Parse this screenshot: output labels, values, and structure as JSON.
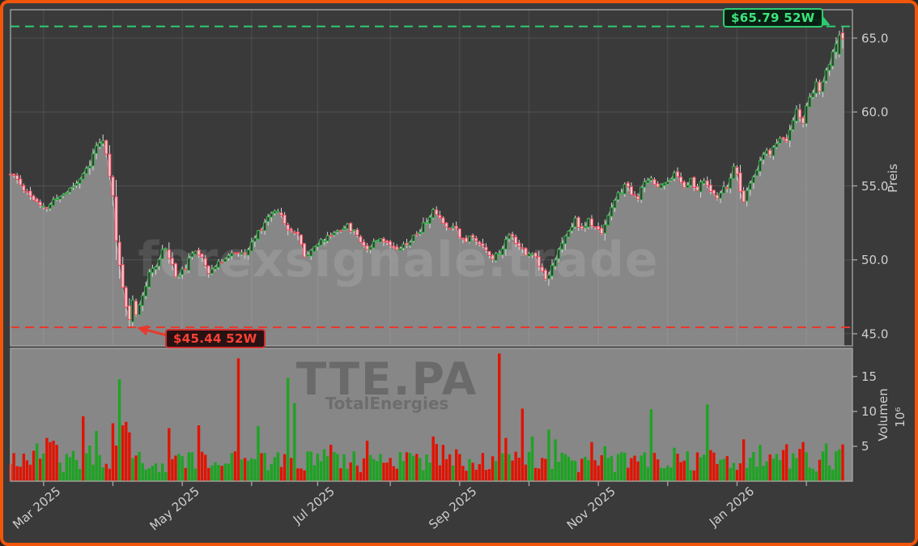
{
  "meta": {
    "watermark_main": "forexsignale.trade",
    "watermark_symbol": "TTE.PA",
    "watermark_company": "TotalEnergies"
  },
  "axes": {
    "price_axis_title": "Preis",
    "volume_axis_title": "Volumen",
    "volume_scale_label": "10⁶",
    "price_tick_labels": [
      "45.0",
      "50.0",
      "55.0",
      "60.0",
      "65.0"
    ],
    "price_tick_values": [
      45,
      50,
      55,
      60,
      65
    ],
    "volume_tick_labels": [
      "5",
      "10",
      "15"
    ],
    "volume_tick_values": [
      5,
      10,
      15
    ],
    "x_ticks": [
      {
        "day": 10,
        "label": "Mar 2025"
      },
      {
        "day": 31,
        "label": ""
      },
      {
        "day": 52,
        "label": "May 2025"
      },
      {
        "day": 73,
        "label": ""
      },
      {
        "day": 93,
        "label": "Jul 2025"
      },
      {
        "day": 115,
        "label": ""
      },
      {
        "day": 136,
        "label": "Sep 2025"
      },
      {
        "day": 157,
        "label": ""
      },
      {
        "day": 178,
        "label": "Nov 2025"
      },
      {
        "day": 199,
        "label": ""
      },
      {
        "day": 220,
        "label": "Jan 2026"
      },
      {
        "day": 241,
        "label": ""
      }
    ]
  },
  "levels": {
    "high": {
      "value": 65.79,
      "label": "$65.79 52W"
    },
    "low": {
      "value": 45.44,
      "label": "$45.44 52W"
    }
  },
  "chart_data": {
    "type": "candlestick",
    "symbol": "TTE.PA",
    "company": "TotalEnergies",
    "x_range": [
      "Feb 2025",
      "Feb 2026"
    ],
    "trading_days": 253,
    "ylabel_price": "Preis",
    "ylabel_volume": "Volumen (10^6)",
    "ylim_price": [
      44.2,
      66.9
    ],
    "ylim_volume": [
      0,
      19.2
    ],
    "high_52w": 65.79,
    "low_52w": 45.44,
    "last_close": 65.0,
    "grid": true,
    "price_keypoints": [
      [
        0,
        55.8
      ],
      [
        2,
        55.4
      ],
      [
        4,
        54.8
      ],
      [
        7,
        54.1
      ],
      [
        9,
        53.6
      ],
      [
        11,
        53.5
      ],
      [
        13,
        54.0
      ],
      [
        17,
        54.6
      ],
      [
        20,
        55.2
      ],
      [
        22,
        55.9
      ],
      [
        24,
        56.3
      ],
      [
        26,
        57.9
      ],
      [
        28,
        57.8
      ],
      [
        29,
        56.9
      ],
      [
        31,
        54.0
      ],
      [
        32,
        51.5
      ],
      [
        33,
        49.3
      ],
      [
        35,
        46.8
      ],
      [
        36,
        45.9
      ],
      [
        37,
        47.2
      ],
      [
        38,
        46.4
      ],
      [
        40,
        47.6
      ],
      [
        42,
        48.9
      ],
      [
        45,
        50.2
      ],
      [
        47,
        50.9
      ],
      [
        48,
        50.2
      ],
      [
        50,
        48.9
      ],
      [
        52,
        49.2
      ],
      [
        56,
        50.6
      ],
      [
        58,
        50.3
      ],
      [
        60,
        49.2
      ],
      [
        62,
        49.5
      ],
      [
        65,
        50.2
      ],
      [
        68,
        50.5
      ],
      [
        71,
        50.3
      ],
      [
        74,
        51.5
      ],
      [
        77,
        52.6
      ],
      [
        80,
        53.4
      ],
      [
        82,
        53.1
      ],
      [
        84,
        52.2
      ],
      [
        87,
        51.6
      ],
      [
        89,
        50.3
      ],
      [
        92,
        50.9
      ],
      [
        95,
        51.4
      ],
      [
        99,
        52.0
      ],
      [
        102,
        52.3
      ],
      [
        105,
        51.7
      ],
      [
        108,
        50.7
      ],
      [
        110,
        51.3
      ],
      [
        112,
        51.5
      ],
      [
        114,
        51.1
      ],
      [
        117,
        50.8
      ],
      [
        120,
        51.1
      ],
      [
        124,
        52.0
      ],
      [
        128,
        53.3
      ],
      [
        131,
        52.7
      ],
      [
        132,
        52.1
      ],
      [
        134,
        52.4
      ],
      [
        136,
        51.7
      ],
      [
        138,
        51.2
      ],
      [
        139,
        51.6
      ],
      [
        143,
        51.0
      ],
      [
        146,
        50.1
      ],
      [
        149,
        50.7
      ],
      [
        151,
        51.8
      ],
      [
        153,
        51.3
      ],
      [
        156,
        50.3
      ],
      [
        158,
        50.5
      ],
      [
        161,
        49.4
      ],
      [
        162,
        48.7
      ],
      [
        164,
        49.7
      ],
      [
        167,
        51.0
      ],
      [
        170,
        52.3
      ],
      [
        171,
        52.8
      ],
      [
        173,
        52.0
      ],
      [
        175,
        52.7
      ],
      [
        177,
        52.1
      ],
      [
        179,
        51.9
      ],
      [
        181,
        53.1
      ],
      [
        184,
        54.3
      ],
      [
        186,
        55.1
      ],
      [
        188,
        54.4
      ],
      [
        190,
        54.2
      ],
      [
        192,
        55.1
      ],
      [
        194,
        55.6
      ],
      [
        196,
        54.9
      ],
      [
        198,
        55.2
      ],
      [
        201,
        55.8
      ],
      [
        204,
        55.0
      ],
      [
        206,
        55.4
      ],
      [
        208,
        54.7
      ],
      [
        210,
        55.4
      ],
      [
        212,
        54.6
      ],
      [
        214,
        54.1
      ],
      [
        217,
        55.1
      ],
      [
        219,
        56.2
      ],
      [
        220,
        55.5
      ],
      [
        222,
        53.9
      ],
      [
        223,
        54.4
      ],
      [
        225,
        55.7
      ],
      [
        227,
        56.7
      ],
      [
        229,
        57.3
      ],
      [
        230,
        57.1
      ],
      [
        232,
        57.9
      ],
      [
        234,
        58.3
      ],
      [
        235,
        57.9
      ],
      [
        237,
        59.6
      ],
      [
        238,
        60.2
      ],
      [
        240,
        59.3
      ],
      [
        242,
        61.0
      ],
      [
        244,
        62.0
      ],
      [
        245,
        61.3
      ],
      [
        247,
        62.8
      ],
      [
        248,
        63.2
      ],
      [
        250,
        64.4
      ],
      [
        251,
        65.2
      ],
      [
        252,
        65.2
      ]
    ],
    "volume_spikes": [
      [
        8,
        5.4,
        "g"
      ],
      [
        11,
        6.2,
        "r"
      ],
      [
        12,
        5.6,
        "r"
      ],
      [
        13,
        5.8,
        "r"
      ],
      [
        14,
        5.2,
        "r"
      ],
      [
        22,
        9.3,
        "r"
      ],
      [
        26,
        7.2,
        "g"
      ],
      [
        31,
        8.3,
        "r"
      ],
      [
        33,
        14.6,
        "g"
      ],
      [
        34,
        8.0,
        "r"
      ],
      [
        35,
        8.5,
        "r"
      ],
      [
        36,
        7.0,
        "r"
      ],
      [
        48,
        7.6,
        "r"
      ],
      [
        57,
        8.0,
        "r"
      ],
      [
        69,
        17.6,
        "r"
      ],
      [
        75,
        7.9,
        "g"
      ],
      [
        84,
        14.8,
        "g"
      ],
      [
        86,
        11.2,
        "g"
      ],
      [
        108,
        5.8,
        "r"
      ],
      [
        128,
        6.4,
        "r"
      ],
      [
        131,
        5.2,
        "r"
      ],
      [
        148,
        18.3,
        "r"
      ],
      [
        150,
        6.2,
        "r"
      ],
      [
        155,
        10.4,
        "r"
      ],
      [
        158,
        6.4,
        "g"
      ],
      [
        163,
        7.4,
        "g"
      ],
      [
        165,
        6.0,
        "g"
      ],
      [
        176,
        5.6,
        "r"
      ],
      [
        194,
        10.3,
        "g"
      ],
      [
        201,
        4.8,
        "g"
      ],
      [
        211,
        11.0,
        "g"
      ],
      [
        222,
        6.0,
        "r"
      ],
      [
        227,
        5.2,
        "g"
      ],
      [
        240,
        5.6,
        "r"
      ],
      [
        247,
        5.4,
        "g"
      ]
    ],
    "volume_base_range": [
      1.3,
      4.3
    ]
  },
  "colors": {
    "frame_border": "#f1560b",
    "background": "#3a3a3a",
    "area_fill": "#8e8e8e",
    "volume_panel_bg": "#8e8e8e",
    "candle_up_stroke": "#33b34a",
    "candle_down_stroke": "#e8465a",
    "candle_down_fill": "#f3ccd3",
    "wick": "#d9d9d9",
    "volume_up": "#1da322",
    "volume_down": "#e01300",
    "level_high": "#2ecc71",
    "level_low": "#e8392e",
    "tick_text": "#cfcfcf",
    "spine": "#a8a8a8"
  }
}
